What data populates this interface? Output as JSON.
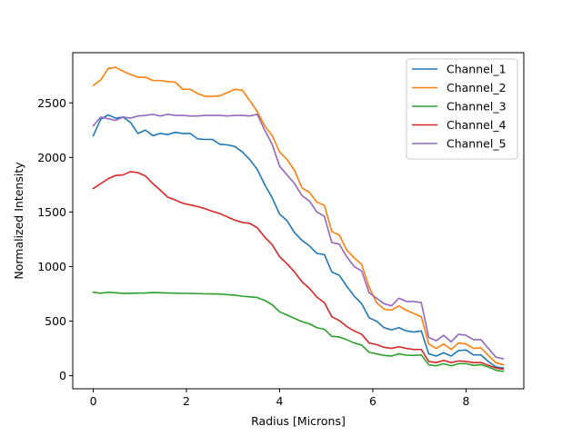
{
  "chart_data": {
    "type": "line",
    "title": "",
    "xlabel": "Radius [Microns]",
    "ylabel": "Normalized Intensity",
    "xlim": [
      -0.44,
      9.24
    ],
    "ylim": [
      -120,
      2960
    ],
    "xticks": [
      0,
      2,
      4,
      6,
      8
    ],
    "xtick_labels": [
      "0",
      "2",
      "4",
      "6",
      "8"
    ],
    "yticks": [
      0,
      500,
      1000,
      1500,
      2000,
      2500
    ],
    "ytick_labels": [
      "0",
      "500",
      "1000",
      "1500",
      "2000",
      "2500"
    ],
    "grid": false,
    "legend_position": "top-right",
    "x": [
      0,
      0.16,
      0.32,
      0.48,
      0.64,
      0.8,
      0.96,
      1.12,
      1.28,
      1.44,
      1.6,
      1.76,
      1.92,
      2.08,
      2.24,
      2.4,
      2.56,
      2.72,
      2.88,
      3.04,
      3.2,
      3.36,
      3.52,
      3.68,
      3.84,
      4.0,
      4.16,
      4.32,
      4.48,
      4.64,
      4.8,
      4.96,
      5.12,
      5.28,
      5.44,
      5.6,
      5.76,
      5.92,
      6.08,
      6.24,
      6.4,
      6.56,
      6.72,
      6.88,
      7.04,
      7.2,
      7.36,
      7.52,
      7.68,
      7.84,
      8.0,
      8.16,
      8.32,
      8.48,
      8.64,
      8.8
    ],
    "series": [
      {
        "name": "Channel_1",
        "color": "#1f77b4",
        "values": [
          2200,
          2350,
          2390,
          2360,
          2370,
          2320,
          2220,
          2250,
          2200,
          2220,
          2210,
          2230,
          2220,
          2220,
          2170,
          2165,
          2165,
          2120,
          2115,
          2100,
          2050,
          1980,
          1890,
          1750,
          1630,
          1480,
          1420,
          1310,
          1240,
          1190,
          1120,
          1110,
          950,
          920,
          820,
          730,
          660,
          530,
          500,
          440,
          420,
          440,
          410,
          400,
          410,
          200,
          180,
          210,
          180,
          230,
          235,
          190,
          190,
          130,
          80,
          70
        ]
      },
      {
        "name": "Channel_2",
        "color": "#ff7f0e",
        "values": [
          2660,
          2710,
          2815,
          2825,
          2790,
          2760,
          2735,
          2735,
          2705,
          2705,
          2695,
          2690,
          2625,
          2625,
          2585,
          2560,
          2560,
          2565,
          2595,
          2625,
          2615,
          2520,
          2420,
          2290,
          2200,
          2050,
          1980,
          1880,
          1720,
          1680,
          1590,
          1560,
          1320,
          1290,
          1150,
          1080,
          1020,
          810,
          670,
          610,
          600,
          640,
          600,
          570,
          540,
          290,
          250,
          290,
          240,
          300,
          290,
          250,
          255,
          185,
          120,
          100
        ]
      },
      {
        "name": "Channel_3",
        "color": "#2ca02c",
        "values": [
          765,
          755,
          765,
          760,
          755,
          755,
          757,
          758,
          762,
          760,
          758,
          757,
          754,
          754,
          752,
          750,
          749,
          748,
          742,
          738,
          728,
          722,
          716,
          690,
          650,
          585,
          555,
          525,
          495,
          475,
          440,
          425,
          360,
          355,
          330,
          300,
          280,
          215,
          200,
          185,
          180,
          200,
          188,
          185,
          190,
          100,
          90,
          110,
          90,
          110,
          110,
          95,
          100,
          80,
          50,
          40
        ]
      },
      {
        "name": "Channel_4",
        "color": "#d62728",
        "values": [
          1715,
          1760,
          1805,
          1835,
          1840,
          1870,
          1860,
          1830,
          1760,
          1700,
          1635,
          1610,
          1580,
          1565,
          1550,
          1530,
          1505,
          1485,
          1455,
          1425,
          1405,
          1395,
          1355,
          1270,
          1200,
          1090,
          1025,
          950,
          860,
          800,
          720,
          670,
          540,
          505,
          450,
          410,
          380,
          300,
          285,
          260,
          250,
          265,
          250,
          240,
          240,
          130,
          120,
          140,
          120,
          135,
          130,
          120,
          120,
          95,
          70,
          60
        ]
      },
      {
        "name": "Channel_5",
        "color": "#9467bd",
        "values": [
          2290,
          2370,
          2355,
          2340,
          2370,
          2360,
          2380,
          2385,
          2395,
          2380,
          2395,
          2385,
          2385,
          2380,
          2380,
          2385,
          2385,
          2385,
          2380,
          2385,
          2385,
          2380,
          2395,
          2250,
          2120,
          1920,
          1840,
          1760,
          1650,
          1600,
          1500,
          1460,
          1220,
          1205,
          1090,
          1000,
          960,
          760,
          710,
          660,
          640,
          710,
          680,
          680,
          670,
          350,
          320,
          370,
          310,
          380,
          370,
          330,
          330,
          250,
          170,
          155
        ]
      }
    ]
  }
}
